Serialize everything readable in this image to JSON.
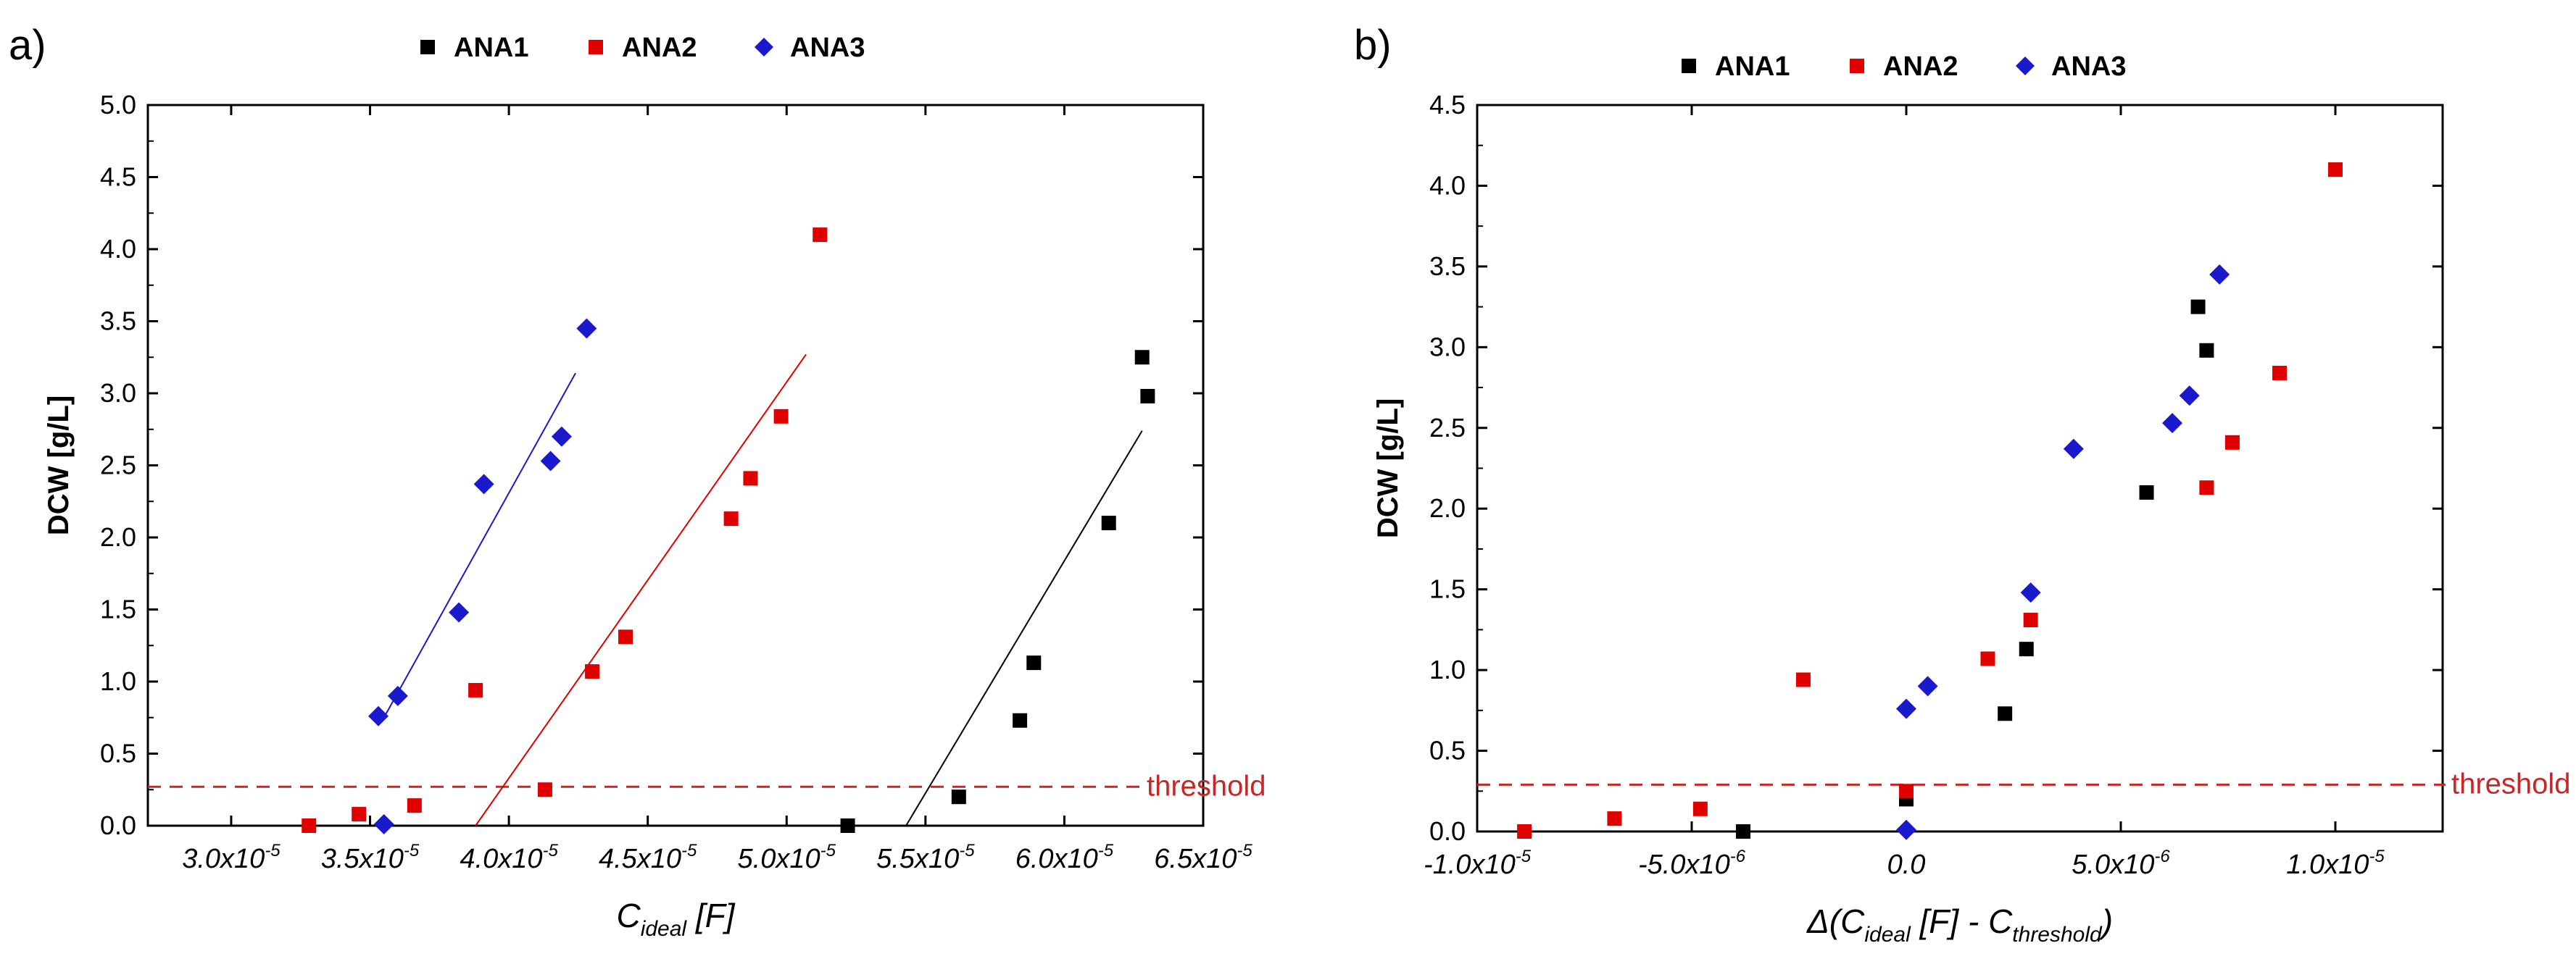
{
  "colors": {
    "ANA1": "#000000",
    "ANA2": "#e00000",
    "ANA3": "#1a1acc",
    "threshold": "#c62828"
  },
  "legend": [
    {
      "name": "ANA1",
      "marker": "square"
    },
    {
      "name": "ANA2",
      "marker": "square"
    },
    {
      "name": "ANA3",
      "marker": "diamond"
    }
  ],
  "chart_data": [
    {
      "panel_label": "a)",
      "type": "scatter",
      "xlabel": {
        "main": "C",
        "sub": "ideal",
        "tail": " [F]"
      },
      "ylabel": "DCW [g/L]",
      "xlim": [
        2.7e-05,
        6.5e-05
      ],
      "ylim": [
        0,
        5.0
      ],
      "xticks": [
        {
          "value": 3e-05,
          "mant": "3.0x10",
          "exp": "-5"
        },
        {
          "value": 3.5e-05,
          "mant": "3.5x10",
          "exp": "-5"
        },
        {
          "value": 4e-05,
          "mant": "4.0x10",
          "exp": "-5"
        },
        {
          "value": 4.5e-05,
          "mant": "4.5x10",
          "exp": "-5"
        },
        {
          "value": 5e-05,
          "mant": "5.0x10",
          "exp": "-5"
        },
        {
          "value": 5.5e-05,
          "mant": "5.5x10",
          "exp": "-5"
        },
        {
          "value": 6e-05,
          "mant": "6.0x10",
          "exp": "-5"
        },
        {
          "value": 6.5e-05,
          "mant": "6.5x10",
          "exp": "-5"
        }
      ],
      "yticks": [
        "0.0",
        "0.5",
        "1.0",
        "1.5",
        "2.0",
        "2.5",
        "3.0",
        "3.5",
        "4.0",
        "4.5",
        "5.0"
      ],
      "threshold": {
        "y": 0.27,
        "label": "threshold"
      },
      "series": [
        {
          "name": "ANA1",
          "marker": "square",
          "points": [
            [
              5.22e-05,
              0.0
            ],
            [
              5.62e-05,
              0.2
            ],
            [
              5.84e-05,
              0.73
            ],
            [
              5.89e-05,
              1.13
            ],
            [
              6.16e-05,
              2.1
            ],
            [
              6.28e-05,
              3.25
            ],
            [
              6.3e-05,
              2.98
            ]
          ],
          "fit": [
            [
              5.43e-05,
              0.0
            ],
            [
              6.28e-05,
              2.74
            ]
          ]
        },
        {
          "name": "ANA2",
          "marker": "square",
          "points": [
            [
              3.28e-05,
              0.0
            ],
            [
              3.46e-05,
              0.08
            ],
            [
              3.66e-05,
              0.14
            ],
            [
              3.88e-05,
              0.94
            ],
            [
              4.13e-05,
              0.25
            ],
            [
              4.3e-05,
              1.07
            ],
            [
              4.42e-05,
              1.31
            ],
            [
              4.8e-05,
              2.13
            ],
            [
              4.87e-05,
              2.41
            ],
            [
              4.98e-05,
              2.84
            ],
            [
              5.12e-05,
              4.1
            ]
          ],
          "fit": [
            [
              3.88e-05,
              0.0
            ],
            [
              5.07e-05,
              3.27
            ]
          ]
        },
        {
          "name": "ANA3",
          "marker": "diamond",
          "points": [
            [
              3.53e-05,
              0.76
            ],
            [
              3.55e-05,
              0.01
            ],
            [
              3.6e-05,
              0.9
            ],
            [
              3.82e-05,
              1.48
            ],
            [
              3.91e-05,
              2.37
            ],
            [
              4.15e-05,
              2.53
            ],
            [
              4.19e-05,
              2.7
            ],
            [
              4.28e-05,
              3.45
            ]
          ],
          "fit": [
            [
              3.55e-05,
              0.75
            ],
            [
              4.24e-05,
              3.14
            ]
          ]
        }
      ]
    },
    {
      "panel_label": "b)",
      "type": "scatter",
      "xlabel": {
        "prefix": "Δ(",
        "main": "C",
        "sub": "ideal",
        "mid": " [F] - C",
        "sub2": "threshold",
        "tail": ")"
      },
      "ylabel": "DCW [g/L]",
      "xlim": [
        -1e-05,
        1.25e-05
      ],
      "ylim": [
        0,
        4.5
      ],
      "xticks": [
        {
          "value": -1e-05,
          "mant": "-1.0x10",
          "exp": "-5"
        },
        {
          "value": -5e-06,
          "mant": "-5.0x10",
          "exp": "-6"
        },
        {
          "value": 0.0,
          "mant": "0.0",
          "exp": ""
        },
        {
          "value": 5e-06,
          "mant": "5.0x10",
          "exp": "-6"
        },
        {
          "value": 1e-05,
          "mant": "1.0x10",
          "exp": "-5"
        }
      ],
      "yticks": [
        "0.0",
        "0.5",
        "1.0",
        "1.5",
        "2.0",
        "2.5",
        "3.0",
        "3.5",
        "4.0",
        "4.5"
      ],
      "threshold": {
        "y": 0.29,
        "label": "threshold"
      },
      "series": [
        {
          "name": "ANA1",
          "marker": "square",
          "points": [
            [
              -3.8e-06,
              0.0
            ],
            [
              0.0,
              0.2
            ],
            [
              2.3e-06,
              0.73
            ],
            [
              2.8e-06,
              1.13
            ],
            [
              5.6e-06,
              2.1
            ],
            [
              6.8e-06,
              3.25
            ],
            [
              7e-06,
              2.98
            ]
          ]
        },
        {
          "name": "ANA2",
          "marker": "square",
          "points": [
            [
              -8.9e-06,
              0.0
            ],
            [
              -6.8e-06,
              0.08
            ],
            [
              -4.8e-06,
              0.14
            ],
            [
              -2.4e-06,
              0.94
            ],
            [
              0.0,
              0.25
            ],
            [
              1.9e-06,
              1.07
            ],
            [
              2.9e-06,
              1.31
            ],
            [
              7e-06,
              2.13
            ],
            [
              7.6e-06,
              2.41
            ],
            [
              8.7e-06,
              2.84
            ],
            [
              1e-05,
              4.1
            ]
          ]
        },
        {
          "name": "ANA3",
          "marker": "diamond",
          "points": [
            [
              0.0,
              0.76
            ],
            [
              0.0,
              0.01
            ],
            [
              5e-07,
              0.9
            ],
            [
              2.9e-06,
              1.48
            ],
            [
              3.9e-06,
              2.37
            ],
            [
              6.2e-06,
              2.53
            ],
            [
              6.6e-06,
              2.7
            ],
            [
              7.3e-06,
              3.45
            ]
          ]
        }
      ]
    }
  ]
}
